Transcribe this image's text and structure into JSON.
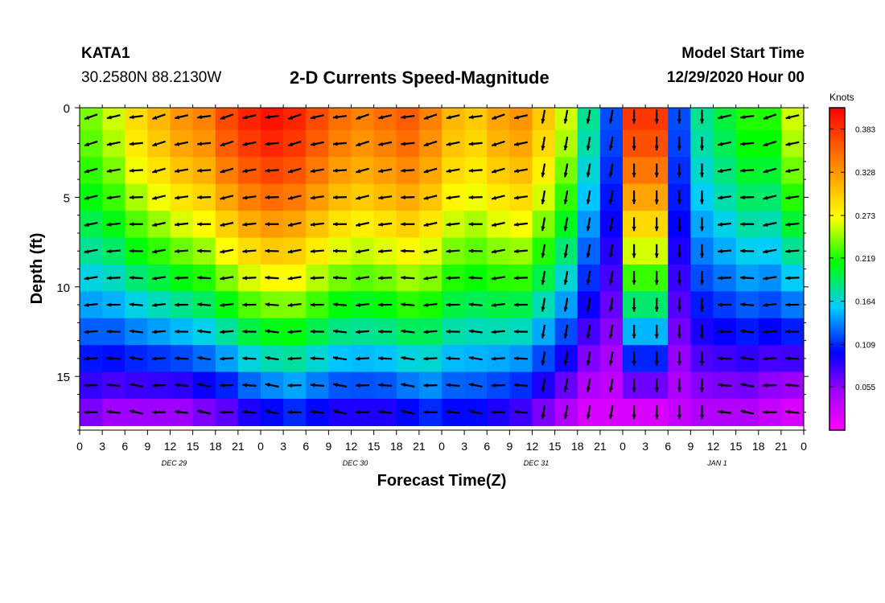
{
  "header": {
    "station": "KATA1",
    "coordinates": "30.2580N 88.2130W",
    "title": "2-D Currents Speed-Magnitude",
    "start_label": "Model Start Time",
    "start_value": "12/29/2020 Hour 00"
  },
  "chart_data": {
    "type": "heatmap",
    "title": "2-D Currents Speed-Magnitude",
    "xlabel": "Forecast Time(Z)",
    "ylabel": "Depth (ft)",
    "x_ticks": [
      "0",
      "3",
      "6",
      "9",
      "12",
      "15",
      "18",
      "21",
      "0",
      "3",
      "6",
      "9",
      "12",
      "15",
      "18",
      "21",
      "0",
      "3",
      "6",
      "9",
      "12",
      "15",
      "18",
      "21",
      "0",
      "3",
      "6",
      "9",
      "12",
      "15",
      "18",
      "21",
      "0"
    ],
    "date_labels": [
      {
        "label": "DEC 29",
        "tick_index": 4
      },
      {
        "label": "DEC 30",
        "tick_index": 12
      },
      {
        "label": "DEC 31",
        "tick_index": 20
      },
      {
        "label": "JAN 1",
        "tick_index": 28
      }
    ],
    "y_ticks": [
      0,
      5,
      10,
      15
    ],
    "ylim": [
      18,
      0
    ],
    "colorbar": {
      "label": "Knots",
      "ticks": [
        "0.383",
        "0.328",
        "0.273",
        "0.219",
        "0.164",
        "0.109",
        "0.055"
      ],
      "range": [
        0,
        0.41
      ]
    },
    "depths_ft": [
      0.5,
      2.0,
      3.5,
      5.0,
      6.5,
      8.0,
      9.5,
      11.0,
      12.5,
      14.0,
      15.5,
      17.0
    ],
    "hours": [
      0,
      3,
      6,
      9,
      12,
      15,
      18,
      21,
      24,
      27,
      30,
      33,
      36,
      39,
      42,
      45,
      48,
      51,
      54,
      57,
      60,
      63,
      66,
      69,
      72,
      75,
      78,
      81,
      84,
      87,
      90,
      93
    ],
    "speed_profile": {
      "comment_free": true,
      "surface": [
        0.24,
        0.26,
        0.29,
        0.31,
        0.33,
        0.34,
        0.37,
        0.39,
        0.4,
        0.39,
        0.37,
        0.35,
        0.34,
        0.35,
        0.36,
        0.34,
        0.31,
        0.3,
        0.32,
        0.33,
        0.3,
        0.26,
        0.18,
        0.12,
        0.38,
        0.38,
        0.12,
        0.18,
        0.2,
        0.22,
        0.22,
        0.26
      ],
      "bottom": [
        0.06,
        0.05,
        0.05,
        0.05,
        0.05,
        0.06,
        0.07,
        0.09,
        0.1,
        0.11,
        0.1,
        0.09,
        0.09,
        0.09,
        0.1,
        0.11,
        0.1,
        0.1,
        0.09,
        0.08,
        0.06,
        0.04,
        0.02,
        0.02,
        0.02,
        0.02,
        0.03,
        0.04,
        0.04,
        0.04,
        0.03,
        0.02
      ]
    },
    "vector_style": "arrow",
    "vectors_note": ""
  }
}
